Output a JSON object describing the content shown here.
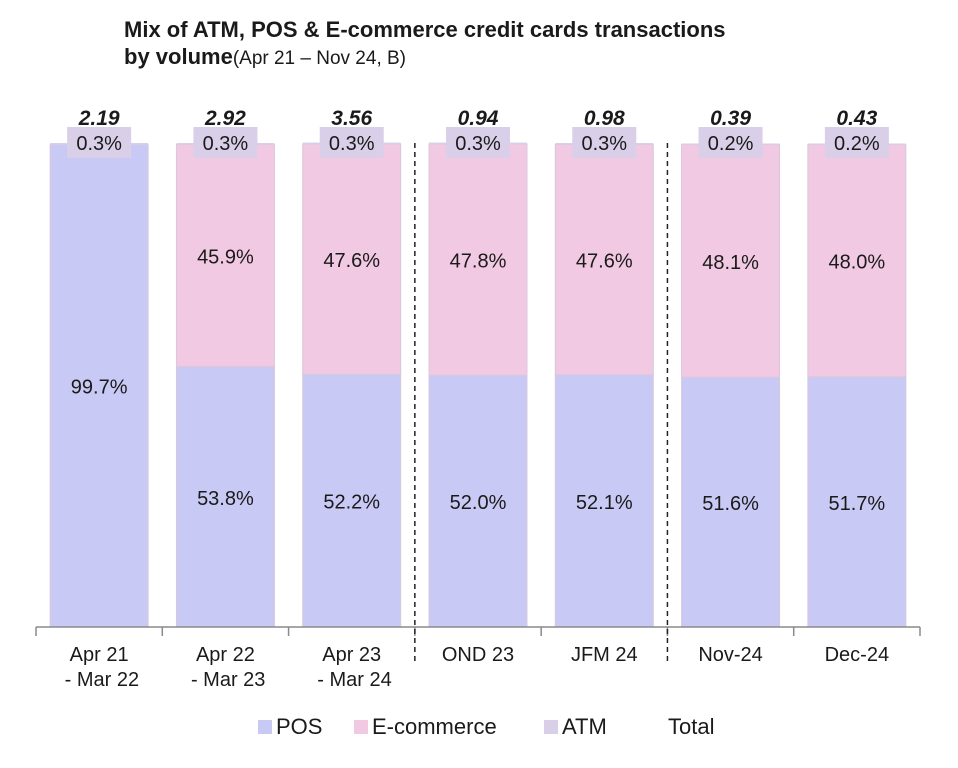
{
  "title": {
    "line1": "Mix of ATM, POS & E-commerce credit cards transactions",
    "line2_bold": "by volume",
    "line2_sub": "(Apr 21 – Nov 24, B)"
  },
  "colors": {
    "pos": "#c9c9f5",
    "ecommerce": "#f2c9e2",
    "atm": "#d9cfe8",
    "bar_edge": "#d8c8dc",
    "axis": "#8a8a8a"
  },
  "chart_data": {
    "type": "bar",
    "stacked": true,
    "normalized": true,
    "categories": [
      [
        "Apr 21",
        " - Mar 22"
      ],
      [
        "Apr 22",
        " - Mar 23"
      ],
      [
        "Apr 23",
        " - Mar 24"
      ],
      [
        "OND 23"
      ],
      [
        "JFM 24"
      ],
      [
        "Nov-24"
      ],
      [
        "Dec-24"
      ]
    ],
    "totals": [
      "2.19",
      "2.92",
      "3.56",
      "0.94",
      "0.98",
      "0.39",
      "0.43"
    ],
    "series": [
      {
        "name": "POS",
        "values": [
          99.7,
          53.8,
          52.2,
          52.0,
          52.1,
          51.6,
          51.7
        ],
        "labels": [
          "99.7%",
          "53.8%",
          "52.2%",
          "52.0%",
          "52.1%",
          "51.6%",
          "51.7%"
        ]
      },
      {
        "name": "E-commerce",
        "values": [
          0,
          45.9,
          47.6,
          47.8,
          47.6,
          48.1,
          48.0
        ],
        "labels": [
          "",
          "45.9%",
          "47.6%",
          "47.8%",
          "47.6%",
          "48.1%",
          "48.0%"
        ]
      },
      {
        "name": "ATM",
        "values": [
          0.3,
          0.3,
          0.3,
          0.3,
          0.3,
          0.2,
          0.2
        ],
        "labels": [
          "0.3%",
          "0.3%",
          "0.3%",
          "0.3%",
          "0.3%",
          "0.2%",
          "0.2%"
        ]
      }
    ],
    "separators_after": [
      2,
      4
    ],
    "ylim": [
      0,
      100
    ],
    "legend": [
      "POS",
      "E-commerce",
      "ATM",
      "Total"
    ],
    "legend_position": "bottom"
  }
}
